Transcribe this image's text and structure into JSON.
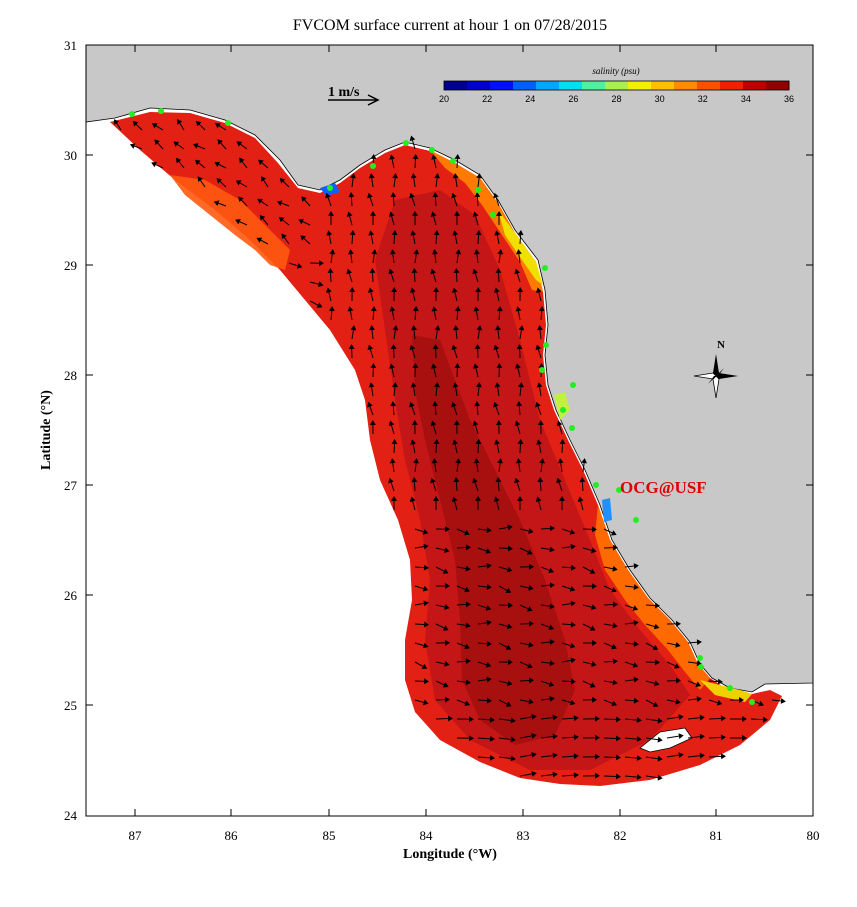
{
  "title": "FVCOM surface current at hour 1 on 07/28/2015",
  "xlabel": "Longitude (°W)",
  "ylabel": "Latitude (°N)",
  "lon_ticks": [
    "87",
    "86",
    "85",
    "84",
    "83",
    "82",
    "81",
    "80"
  ],
  "lat_ticks": [
    "31",
    "30",
    "29",
    "28",
    "27",
    "26",
    "25",
    "24"
  ],
  "colorbar": {
    "title": "salinity (psu)",
    "labels": [
      "20",
      "22",
      "24",
      "26",
      "28",
      "30",
      "32",
      "34",
      "36"
    ],
    "colors": [
      "#00008f",
      "#0000cf",
      "#0010ff",
      "#0060ff",
      "#00a8ff",
      "#00e0f0",
      "#50f0a0",
      "#a8f050",
      "#f0f000",
      "#ffc000",
      "#ff8c00",
      "#ff5000",
      "#f02000",
      "#c00000",
      "#900000"
    ]
  },
  "scale_arrow": {
    "label": "1 m/s"
  },
  "north_label": "N",
  "credit": "OCG@USF",
  "colors": {
    "land": "#c8c8c8",
    "ocean_red": "#e22014",
    "ocean_dark": "#a81010",
    "orange": "#ff6a00",
    "station_green": "#22ee22",
    "credit_red": "#e00000"
  }
}
